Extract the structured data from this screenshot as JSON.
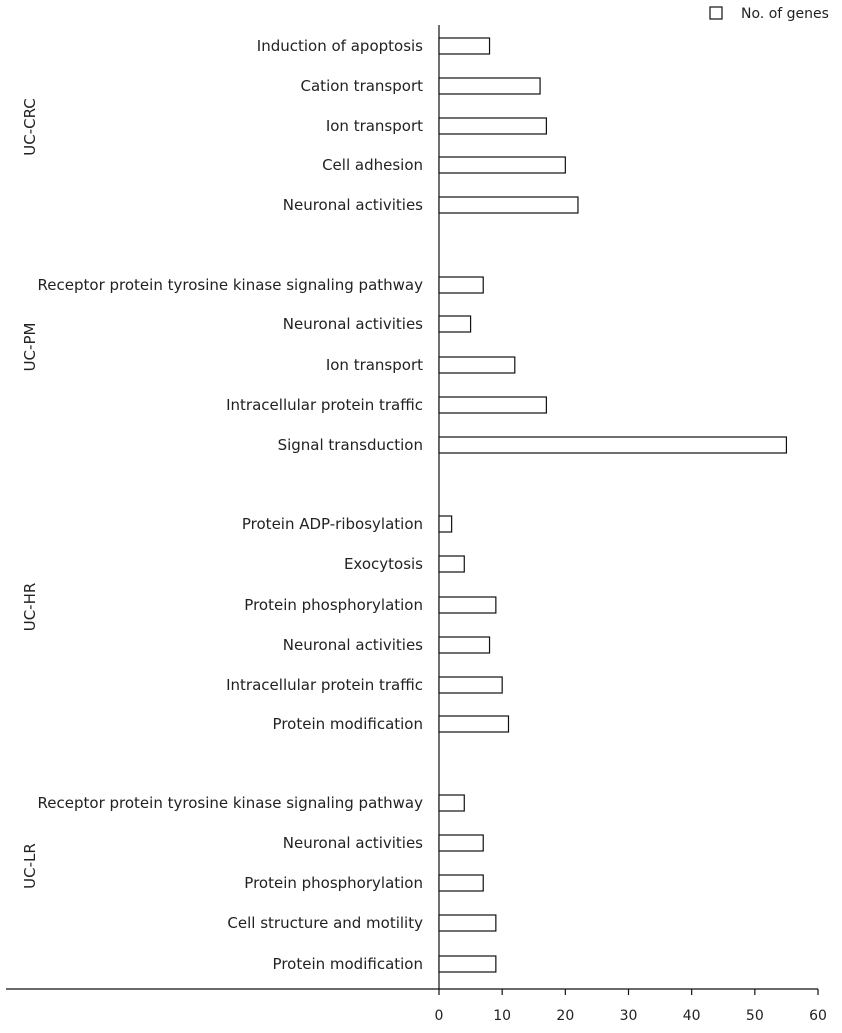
{
  "chart_data": {
    "type": "bar",
    "orientation": "horizontal",
    "legend": {
      "label": "No. of genes",
      "position": "top-right"
    },
    "xlim": [
      0,
      60
    ],
    "xticks": [
      0,
      10,
      20,
      30,
      40,
      50,
      60
    ],
    "grid": false,
    "groups": [
      {
        "name": "UC-CRC",
        "items": [
          {
            "label": "Induction of apoptosis",
            "value": 8
          },
          {
            "label": "Cation transport",
            "value": 16
          },
          {
            "label": "Ion transport",
            "value": 17
          },
          {
            "label": "Cell adhesion",
            "value": 20
          },
          {
            "label": "Neuronal activities",
            "value": 22
          }
        ]
      },
      {
        "name": "UC-PM",
        "items": [
          {
            "label": "Receptor protein tyrosine kinase signaling pathway",
            "value": 7
          },
          {
            "label": "Neuronal activities",
            "value": 5
          },
          {
            "label": "Ion transport",
            "value": 12
          },
          {
            "label": "Intracellular protein traffic",
            "value": 17
          },
          {
            "label": "Signal transduction",
            "value": 55
          }
        ]
      },
      {
        "name": "UC-HR",
        "items": [
          {
            "label": "Protein ADP-ribosylation",
            "value": 2
          },
          {
            "label": "Exocytosis",
            "value": 4
          },
          {
            "label": "Protein phosphorylation",
            "value": 9
          },
          {
            "label": "Neuronal activities",
            "value": 8
          },
          {
            "label": "Intracellular protein traffic",
            "value": 10
          },
          {
            "label": "Protein modification",
            "value": 11
          }
        ]
      },
      {
        "name": "UC-LR",
        "items": [
          {
            "label": "Receptor protein tyrosine kinase signaling pathway",
            "value": 4
          },
          {
            "label": "Neuronal activities",
            "value": 7
          },
          {
            "label": "Protein phosphorylation",
            "value": 7
          },
          {
            "label": "Cell structure and motility",
            "value": 9
          },
          {
            "label": "Protein modification",
            "value": 9
          }
        ]
      }
    ]
  }
}
